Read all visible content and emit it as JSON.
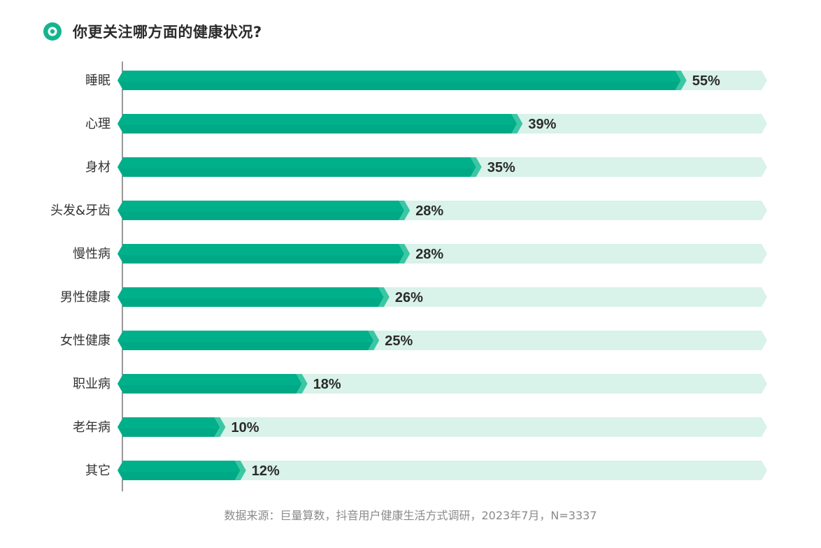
{
  "title": "你更关注哪方面的健康状况?",
  "footer": "数据来源：巨量算数，抖音用户健康生活方式调研，2023年7月，N=3337",
  "colors": {
    "bar": "#00b08a",
    "bar_light": "#3cc7a4",
    "track": "#d9f2ea",
    "label": "#333333",
    "value": "#2b2b2b",
    "icon": "#14b58e"
  },
  "icons": {
    "title": "target-circle-icon"
  },
  "chart_data": {
    "type": "bar",
    "orientation": "horizontal",
    "categories": [
      "睡眠",
      "心理",
      "身材",
      "头发&牙齿",
      "慢性病",
      "男性健康",
      "女性健康",
      "职业病",
      "老年病",
      "其它"
    ],
    "values": [
      55,
      39,
      35,
      28,
      28,
      26,
      25,
      18,
      10,
      12
    ],
    "value_labels": [
      "55%",
      "39%",
      "35%",
      "28%",
      "28%",
      "26%",
      "25%",
      "18%",
      "10%",
      "12%"
    ],
    "unit": "%",
    "xlim": [
      0,
      63
    ],
    "grid": false,
    "legend": "none"
  }
}
